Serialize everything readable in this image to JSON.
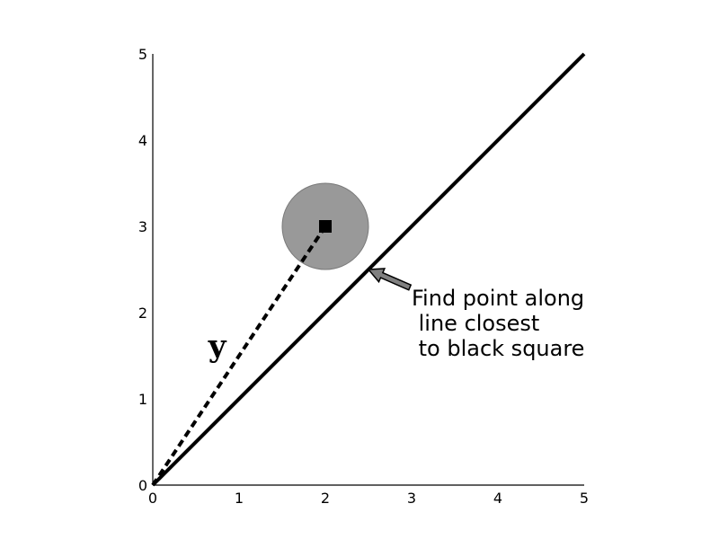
{
  "chart_data": {
    "type": "line",
    "xlim": [
      0,
      5
    ],
    "ylim": [
      0,
      5
    ],
    "x_ticks": [
      "0",
      "1",
      "2",
      "3",
      "4",
      "5"
    ],
    "y_ticks": [
      "0",
      "1",
      "2",
      "3",
      "4",
      "5"
    ],
    "grid": false,
    "series": [
      {
        "x": [
          0,
          5
        ],
        "y": [
          0,
          5
        ],
        "style": "solid",
        "color": "#000000"
      },
      {
        "x": [
          0,
          2
        ],
        "y": [
          0,
          3
        ],
        "style": "dashed",
        "color": "#000000"
      }
    ],
    "target_point": {
      "x": 2,
      "y": 3,
      "marker": "square",
      "color": "#000000"
    },
    "uncertainty_circle": {
      "center": [
        2,
        3
      ],
      "radius": 0.5,
      "color": "#999999"
    },
    "vector_label": {
      "text": "y",
      "x": 0.8,
      "y": 1.6
    },
    "annotation": {
      "lines": [
        "Find point along",
        " line closest",
        " to black square"
      ],
      "arrow_target": [
        2.5,
        2.5
      ],
      "arrow_color": "#808080"
    }
  }
}
